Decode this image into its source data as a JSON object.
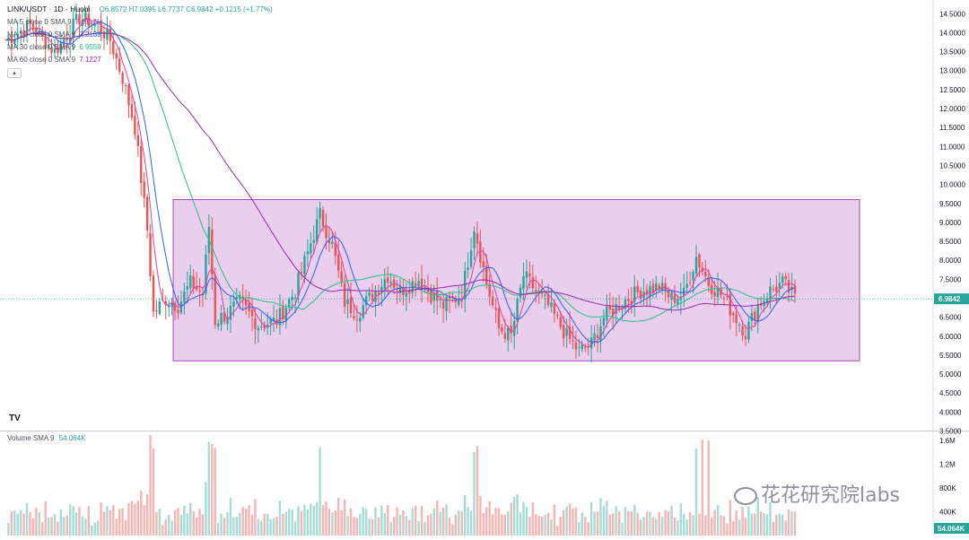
{
  "legend": {
    "symbol": "LINK/USDT · 1D · Huobi",
    "ohlc": "O6.8572 H7.0395 L6.7737 C6.9842 +0.1215 (+1.77%)",
    "ma": [
      {
        "label": "MA 5 close 0 SMA 9",
        "value": "7.0112",
        "color": "#e0409f"
      },
      {
        "label": "MA 10 close 0 SMA 9",
        "value": "7.2188",
        "color": "#2962ff"
      },
      {
        "label": "MA 30 close 0 SMA 9",
        "value": "6.9559",
        "color": "#26c281"
      },
      {
        "label": "MA 60 close 0 SMA 9",
        "value": "7.1227",
        "color": "#9c27b0"
      }
    ],
    "collapse_icon": "chevron-up-icon"
  },
  "volume_legend": {
    "label": "Volume SMA 9",
    "value": "54.064K"
  },
  "tv_logo": "TV",
  "watermark": "花花研究院labs",
  "chart_data": {
    "type": "candlestick",
    "price_axis": {
      "ticks": [
        "14.5000",
        "14.0000",
        "13.5000",
        "13.0000",
        "12.5000",
        "12.0000",
        "11.5000",
        "11.0000",
        "10.5000",
        "10.0000",
        "9.5000",
        "9.0000",
        "8.5000",
        "8.0000",
        "7.5000",
        "7.0000",
        "6.5000",
        "6.0000",
        "5.5000",
        "5.0000",
        "4.5000",
        "4.0000",
        "3.5000"
      ],
      "range": [
        3.5,
        14.85
      ],
      "last_price": "6.9842",
      "last_price_value": 6.9842
    },
    "volume_axis": {
      "ticks": [
        "1.6M",
        "1.2M",
        "800K",
        "400K"
      ],
      "range": [
        0,
        1750000
      ],
      "last_volume": "54.064K"
    },
    "range_box": {
      "price_low": 5.35,
      "price_high": 9.6,
      "color": "#ce93d8"
    },
    "colors": {
      "up": "#26a69a",
      "down": "#ef5350",
      "up_vol": "#a7dcd5",
      "down_vol": "#f7b4b3"
    },
    "segments": [
      [
        0,
        13.8
      ],
      [
        8,
        14.2
      ],
      [
        16,
        13.5
      ],
      [
        24,
        14.4
      ],
      [
        30,
        14.2
      ],
      [
        34,
        13.8
      ],
      [
        38,
        12.8
      ],
      [
        42,
        11.5
      ],
      [
        46,
        8.8
      ],
      [
        48,
        6.6
      ],
      [
        52,
        7.0
      ],
      [
        56,
        6.8
      ],
      [
        60,
        7.4
      ],
      [
        64,
        7.1
      ],
      [
        66,
        8.9
      ],
      [
        68,
        6.4
      ],
      [
        72,
        6.6
      ],
      [
        76,
        6.9
      ],
      [
        82,
        6.3
      ],
      [
        88,
        6.4
      ],
      [
        94,
        7.2
      ],
      [
        98,
        8.2
      ],
      [
        102,
        9.2
      ],
      [
        106,
        8.4
      ],
      [
        110,
        6.9
      ],
      [
        114,
        6.6
      ],
      [
        118,
        7.0
      ],
      [
        124,
        7.6
      ],
      [
        128,
        7.2
      ],
      [
        134,
        7.5
      ],
      [
        138,
        7.1
      ],
      [
        142,
        6.8
      ],
      [
        148,
        7.1
      ],
      [
        152,
        8.9
      ],
      [
        156,
        7.4
      ],
      [
        160,
        6.2
      ],
      [
        164,
        6.0
      ],
      [
        168,
        7.6
      ],
      [
        172,
        7.2
      ],
      [
        176,
        6.8
      ],
      [
        182,
        6.0
      ],
      [
        186,
        5.6
      ],
      [
        190,
        5.8
      ],
      [
        194,
        6.5
      ],
      [
        200,
        6.9
      ],
      [
        206,
        7.2
      ],
      [
        212,
        7.3
      ],
      [
        216,
        7.0
      ],
      [
        220,
        7.1
      ],
      [
        224,
        8.1
      ],
      [
        228,
        7.4
      ],
      [
        232,
        7.1
      ],
      [
        236,
        6.6
      ],
      [
        240,
        6.1
      ],
      [
        244,
        6.8
      ],
      [
        248,
        7.2
      ],
      [
        252,
        7.4
      ],
      [
        256,
        7.0
      ]
    ]
  }
}
